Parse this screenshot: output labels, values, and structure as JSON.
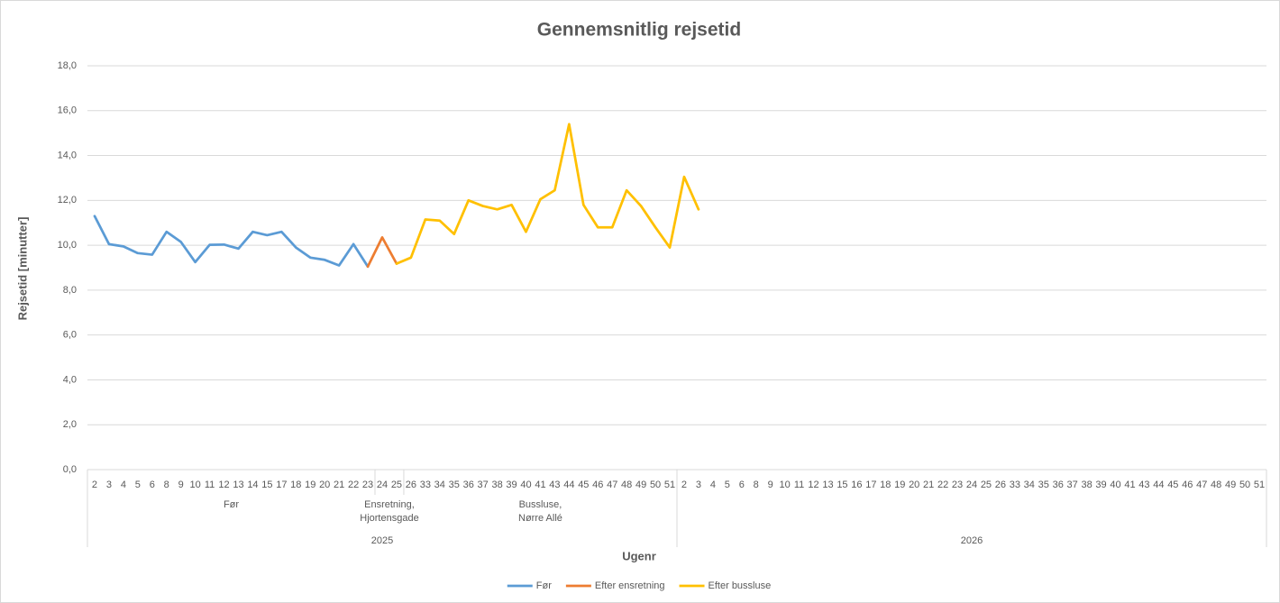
{
  "chart_data": {
    "type": "line",
    "title": "Gennemsnitlig rejsetid",
    "y_label": "Rejsetid [minutter]",
    "x_label": "Ugenr",
    "years": [
      {
        "label": "2025",
        "groups": [
          {
            "label": "Før",
            "weeks": [
              "2",
              "3",
              "4",
              "5",
              "6",
              "8",
              "9",
              "10",
              "11",
              "12",
              "13",
              "14",
              "15",
              "17",
              "18",
              "19",
              "20",
              "21",
              "22",
              "23"
            ]
          },
          {
            "label": "Ensretning,\nHjortensgade",
            "weeks": [
              "24",
              "25"
            ]
          },
          {
            "label": "Bussluse,\nNørre Allé",
            "weeks": [
              "26",
              "33",
              "34",
              "35",
              "36",
              "37",
              "38",
              "39",
              "40",
              "41",
              "43",
              "44",
              "45",
              "46",
              "47",
              "48",
              "49",
              "50",
              "51"
            ]
          }
        ]
      },
      {
        "label": "2026",
        "groups": [
          {
            "label": null,
            "weeks": [
              "2",
              "3",
              "4",
              "5",
              "6",
              "8",
              "9",
              "10",
              "11",
              "12",
              "13",
              "15",
              "16",
              "17",
              "18",
              "19",
              "20",
              "21",
              "22",
              "23",
              "24",
              "25",
              "26",
              "33",
              "34",
              "35",
              "36",
              "37",
              "38",
              "39",
              "40",
              "41",
              "43",
              "44",
              "45",
              "46",
              "47",
              "48",
              "49",
              "50",
              "51"
            ]
          }
        ]
      }
    ],
    "series": [
      {
        "name": "Før",
        "color": "#5b9bd5",
        "values": [
          11.3,
          10.05,
          9.95,
          9.65,
          9.58,
          10.6,
          10.15,
          9.25,
          10.02,
          10.03,
          9.85,
          10.6,
          10.45,
          10.6,
          9.9,
          9.45,
          9.35,
          9.1,
          10.05,
          9.05,
          null,
          null,
          null,
          null,
          null,
          null,
          null,
          null,
          null,
          null,
          null,
          null,
          null,
          null,
          null,
          null,
          null,
          null,
          null,
          null,
          null,
          null,
          null,
          null,
          null,
          null,
          null,
          null,
          null,
          null,
          null,
          null,
          null,
          null,
          null,
          null,
          null,
          null,
          null,
          null,
          null,
          null,
          null,
          null,
          null,
          null,
          null,
          null,
          null,
          null,
          null,
          null,
          null,
          null,
          null,
          null,
          null,
          null,
          null,
          null,
          null,
          null
        ]
      },
      {
        "name": "Efter ensretning",
        "color": "#ed7d31",
        "values": [
          null,
          null,
          null,
          null,
          null,
          null,
          null,
          null,
          null,
          null,
          null,
          null,
          null,
          null,
          null,
          null,
          null,
          null,
          null,
          9.05,
          10.35,
          9.18,
          null,
          null,
          null,
          null,
          null,
          null,
          null,
          null,
          null,
          null,
          null,
          null,
          null,
          null,
          null,
          null,
          null,
          null,
          null,
          null,
          null,
          null,
          null,
          null,
          null,
          null,
          null,
          null,
          null,
          null,
          null,
          null,
          null,
          null,
          null,
          null,
          null,
          null,
          null,
          null,
          null,
          null,
          null,
          null,
          null,
          null,
          null,
          null,
          null,
          null,
          null,
          null,
          null,
          null,
          null,
          null,
          null,
          null,
          null,
          null
        ]
      },
      {
        "name": "Efter bussluse",
        "color": "#ffc000",
        "values": [
          null,
          null,
          null,
          null,
          null,
          null,
          null,
          null,
          null,
          null,
          null,
          null,
          null,
          null,
          null,
          null,
          null,
          null,
          null,
          null,
          null,
          9.18,
          9.45,
          11.15,
          11.1,
          10.5,
          12.0,
          11.75,
          11.6,
          11.8,
          10.6,
          12.05,
          12.45,
          15.4,
          11.8,
          10.8,
          10.8,
          12.45,
          11.75,
          10.8,
          9.9,
          13.05,
          11.6,
          null,
          null,
          null,
          null,
          null,
          null,
          null,
          null,
          null,
          null,
          null,
          null,
          null,
          null,
          null,
          null,
          null,
          null,
          null,
          null,
          null,
          null,
          null,
          null,
          null,
          null,
          null,
          null,
          null,
          null,
          null,
          null,
          null,
          null,
          null,
          null,
          null,
          null,
          null
        ]
      }
    ],
    "ylim": [
      0,
      18
    ],
    "yticks": [
      {
        "value": 0,
        "label": "0,0"
      },
      {
        "value": 2,
        "label": "2,0"
      },
      {
        "value": 4,
        "label": "4,0"
      },
      {
        "value": 6,
        "label": "6,0"
      },
      {
        "value": 8,
        "label": "8,0"
      },
      {
        "value": 10,
        "label": "10,0"
      },
      {
        "value": 12,
        "label": "12,0"
      },
      {
        "value": 14,
        "label": "14,0"
      },
      {
        "value": 16,
        "label": "16,0"
      },
      {
        "value": 18,
        "label": "18,0"
      }
    ],
    "grid": true,
    "legend": "bottom"
  }
}
